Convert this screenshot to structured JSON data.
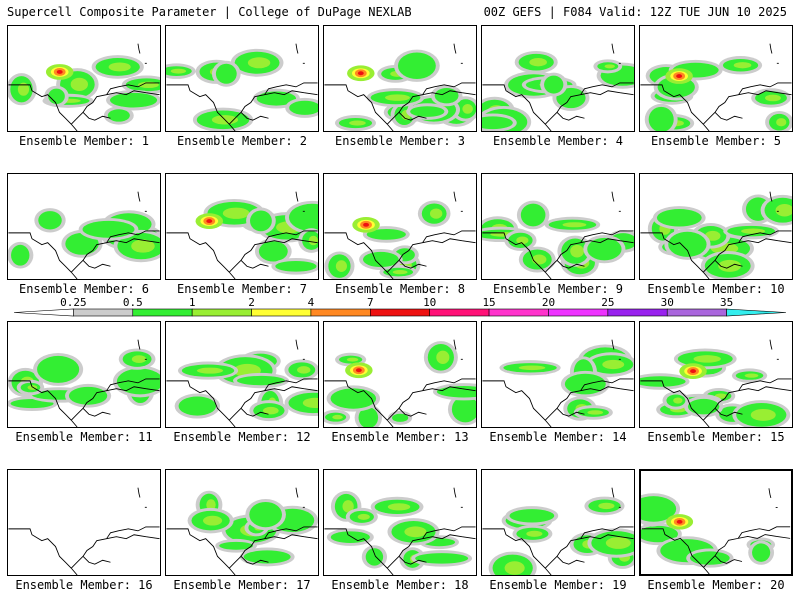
{
  "header": {
    "left": "Supercell Composite Parameter | College of DuPage NEXLAB",
    "right": "00Z GEFS | F084 Valid: 12Z TUE JUN 10 2025"
  },
  "colorbar": {
    "labels": [
      "0.25",
      "0.5",
      "1",
      "2",
      "4",
      "7",
      "10",
      "15",
      "20",
      "25",
      "30",
      "35"
    ],
    "colors": [
      "#ffffff",
      "#cccccc",
      "#33ee33",
      "#99ee33",
      "#ffff33",
      "#ff8822",
      "#ee1111",
      "#ff1177",
      "#ff33cc",
      "#ee33ff",
      "#9922ee",
      "#aa66dd",
      "#33eeee"
    ]
  },
  "members": [
    {
      "label": "Ensemble Member: 1",
      "active": false
    },
    {
      "label": "Ensemble Member: 2",
      "active": false
    },
    {
      "label": "Ensemble Member: 3",
      "active": false
    },
    {
      "label": "Ensemble Member: 4",
      "active": false
    },
    {
      "label": "Ensemble Member: 5",
      "active": false
    },
    {
      "label": "Ensemble Member: 6",
      "active": false
    },
    {
      "label": "Ensemble Member: 7",
      "active": false
    },
    {
      "label": "Ensemble Member: 8",
      "active": false
    },
    {
      "label": "Ensemble Member: 9",
      "active": false
    },
    {
      "label": "Ensemble Member: 10",
      "active": false
    },
    {
      "label": "Ensemble Member: 11",
      "active": false
    },
    {
      "label": "Ensemble Member: 12",
      "active": false
    },
    {
      "label": "Ensemble Member: 13",
      "active": false
    },
    {
      "label": "Ensemble Member: 14",
      "active": false
    },
    {
      "label": "Ensemble Member: 15",
      "active": false
    },
    {
      "label": "Ensemble Member: 16",
      "active": false
    },
    {
      "label": "Ensemble Member: 17",
      "active": false
    },
    {
      "label": "Ensemble Member: 18",
      "active": false
    },
    {
      "label": "Ensemble Member: 19",
      "active": false
    },
    {
      "label": "Ensemble Member: 20",
      "active": true
    }
  ]
}
